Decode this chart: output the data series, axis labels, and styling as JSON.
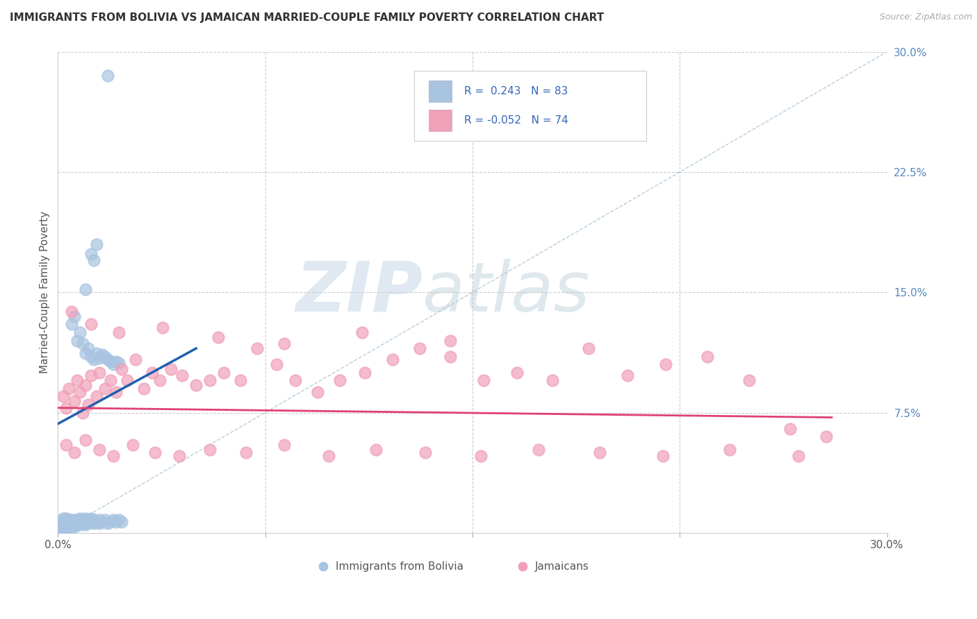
{
  "title": "IMMIGRANTS FROM BOLIVIA VS JAMAICAN MARRIED-COUPLE FAMILY POVERTY CORRELATION CHART",
  "source": "Source: ZipAtlas.com",
  "ylabel": "Married-Couple Family Poverty",
  "xlim": [
    0,
    0.3
  ],
  "ylim": [
    0,
    0.3
  ],
  "ytick_right_labels": [
    "7.5%",
    "15.0%",
    "22.5%",
    "30.0%"
  ],
  "ytick_right_values": [
    0.075,
    0.15,
    0.225,
    0.3
  ],
  "color_bolivia": "#a8c4e0",
  "color_jamaica": "#f0a0b8",
  "color_trend_bolivia": "#2060b0",
  "color_trend_jamaica": "#e04070",
  "color_refline": "#b0c8d8",
  "background_color": "#ffffff",
  "bolivia_x": [
    0.001,
    0.001,
    0.001,
    0.002,
    0.002,
    0.002,
    0.002,
    0.002,
    0.002,
    0.002,
    0.003,
    0.003,
    0.003,
    0.003,
    0.003,
    0.003,
    0.003,
    0.004,
    0.004,
    0.004,
    0.004,
    0.004,
    0.004,
    0.005,
    0.005,
    0.005,
    0.005,
    0.005,
    0.006,
    0.006,
    0.006,
    0.006,
    0.007,
    0.007,
    0.007,
    0.008,
    0.008,
    0.008,
    0.009,
    0.009,
    0.01,
    0.01,
    0.01,
    0.011,
    0.011,
    0.012,
    0.012,
    0.013,
    0.013,
    0.014,
    0.015,
    0.015,
    0.016,
    0.017,
    0.018,
    0.019,
    0.02,
    0.021,
    0.022,
    0.023,
    0.002,
    0.002,
    0.003,
    0.003,
    0.004,
    0.005,
    0.006,
    0.007,
    0.008,
    0.009,
    0.01,
    0.011,
    0.012,
    0.013,
    0.014,
    0.015,
    0.016,
    0.017,
    0.018,
    0.019,
    0.02,
    0.021,
    0.022
  ],
  "bolivia_y": [
    0.005,
    0.007,
    0.003,
    0.006,
    0.004,
    0.008,
    0.005,
    0.007,
    0.003,
    0.009,
    0.004,
    0.006,
    0.008,
    0.005,
    0.003,
    0.007,
    0.009,
    0.005,
    0.007,
    0.003,
    0.008,
    0.004,
    0.006,
    0.005,
    0.008,
    0.004,
    0.007,
    0.006,
    0.005,
    0.007,
    0.004,
    0.008,
    0.006,
    0.005,
    0.008,
    0.007,
    0.005,
    0.009,
    0.006,
    0.008,
    0.007,
    0.009,
    0.005,
    0.008,
    0.006,
    0.007,
    0.009,
    0.006,
    0.008,
    0.007,
    0.008,
    0.006,
    0.007,
    0.008,
    0.006,
    0.007,
    0.008,
    0.007,
    0.008,
    0.007,
    0.15,
    0.14,
    0.175,
    0.17,
    0.165,
    0.13,
    0.135,
    0.12,
    0.125,
    0.118,
    0.112,
    0.115,
    0.11,
    0.108,
    0.112,
    0.109,
    0.111,
    0.11,
    0.108,
    0.107,
    0.105,
    0.107,
    0.106
  ],
  "jamaica_x": [
    0.002,
    0.003,
    0.004,
    0.006,
    0.007,
    0.008,
    0.009,
    0.01,
    0.011,
    0.012,
    0.014,
    0.015,
    0.017,
    0.019,
    0.021,
    0.023,
    0.025,
    0.028,
    0.031,
    0.034,
    0.037,
    0.041,
    0.045,
    0.05,
    0.055,
    0.06,
    0.066,
    0.072,
    0.079,
    0.086,
    0.094,
    0.102,
    0.111,
    0.121,
    0.131,
    0.142,
    0.154,
    0.166,
    0.179,
    0.192,
    0.206,
    0.22,
    0.235,
    0.25,
    0.265,
    0.278,
    0.003,
    0.006,
    0.01,
    0.015,
    0.02,
    0.027,
    0.035,
    0.044,
    0.055,
    0.068,
    0.082,
    0.098,
    0.115,
    0.133,
    0.153,
    0.174,
    0.196,
    0.219,
    0.243,
    0.268,
    0.005,
    0.012,
    0.022,
    0.038,
    0.058,
    0.082,
    0.11,
    0.142
  ],
  "jamaica_y": [
    0.085,
    0.078,
    0.09,
    0.082,
    0.095,
    0.088,
    0.075,
    0.092,
    0.08,
    0.098,
    0.085,
    0.1,
    0.09,
    0.095,
    0.088,
    0.102,
    0.095,
    0.108,
    0.09,
    0.1,
    0.095,
    0.102,
    0.098,
    0.092,
    0.095,
    0.1,
    0.095,
    0.115,
    0.105,
    0.095,
    0.088,
    0.095,
    0.1,
    0.108,
    0.115,
    0.11,
    0.095,
    0.1,
    0.095,
    0.115,
    0.098,
    0.105,
    0.11,
    0.095,
    0.065,
    0.06,
    0.055,
    0.05,
    0.058,
    0.052,
    0.048,
    0.055,
    0.05,
    0.048,
    0.052,
    0.05,
    0.055,
    0.048,
    0.052,
    0.05,
    0.048,
    0.052,
    0.05,
    0.048,
    0.052,
    0.048,
    0.138,
    0.13,
    0.125,
    0.128,
    0.122,
    0.118,
    0.125,
    0.12
  ]
}
